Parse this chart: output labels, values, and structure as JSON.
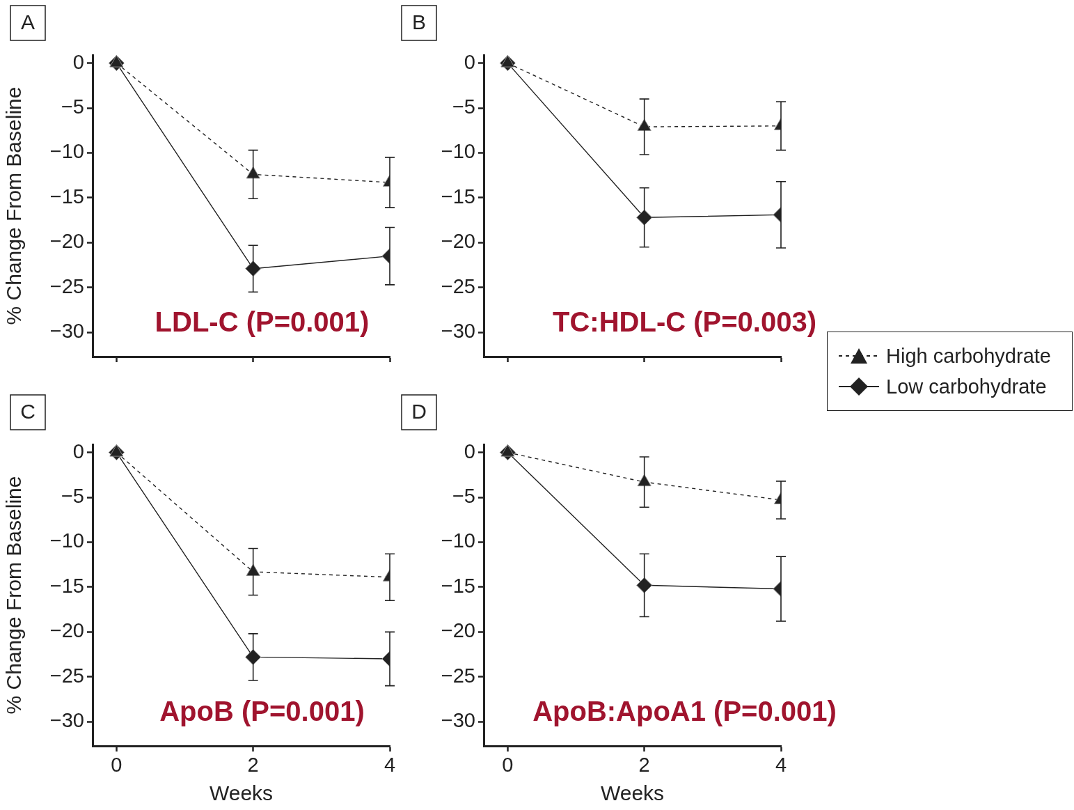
{
  "chart_data": [
    {
      "type": "line",
      "title": "A",
      "ylabel": "% Change From Baseline",
      "annotations": [
        "LDL-C (P=0.001)"
      ],
      "legend": "right",
      "x": [
        0,
        2,
        4
      ],
      "xlim": [
        -0.35,
        4
      ],
      "xticks": [
        0,
        2,
        4
      ],
      "ylim": [
        -32.7,
        0.9
      ],
      "yticks": [
        0,
        -5,
        -10,
        -15,
        -20,
        -25,
        -30
      ],
      "tick_labels": "y",
      "series": [
        {
          "name": "High carbohydrate",
          "color": "#222222",
          "marker": "triangle",
          "line_style": "dashed",
          "values": [
            0,
            -12.4,
            -13.3
          ],
          "errors": [
            null,
            2.7,
            2.8
          ]
        },
        {
          "name": "Low carbohydrate",
          "color": "#222222",
          "marker": "diamond",
          "line_style": "solid",
          "values": [
            0,
            -22.9,
            -21.5
          ],
          "errors": [
            null,
            2.6,
            3.2
          ]
        }
      ]
    },
    {
      "type": "line",
      "title": "B",
      "annotations": [
        "TC:HDL-C (P=0.003)"
      ],
      "x": [
        0,
        2,
        4
      ],
      "xlim": [
        -0.35,
        4
      ],
      "xticks": [
        0,
        2,
        4
      ],
      "ylim": [
        -32.7,
        0.9
      ],
      "yticks": [
        0,
        -5,
        -10,
        -15,
        -20,
        -25,
        -30
      ],
      "tick_labels": "y",
      "series": [
        {
          "color": "#222222",
          "marker": "triangle",
          "line_style": "dashed",
          "values": [
            0,
            -7.1,
            -7.0
          ],
          "errors": [
            null,
            3.1,
            2.7
          ]
        },
        {
          "color": "#222222",
          "marker": "diamond",
          "line_style": "solid",
          "values": [
            0,
            -17.2,
            -16.9
          ],
          "errors": [
            null,
            3.3,
            3.7
          ]
        }
      ]
    },
    {
      "type": "line",
      "title": "C",
      "xlabel": "Weeks",
      "ylabel": "% Change From Baseline",
      "annotations": [
        "ApoB (P=0.001)"
      ],
      "x": [
        0,
        2,
        4
      ],
      "xlim": [
        -0.35,
        4
      ],
      "xticks": [
        0,
        2,
        4
      ],
      "ylim": [
        -32.7,
        0.9
      ],
      "yticks": [
        0,
        -5,
        -10,
        -15,
        -20,
        -25,
        -30
      ],
      "series": [
        {
          "color": "#222222",
          "marker": "triangle",
          "line_style": "dashed",
          "values": [
            0,
            -13.3,
            -13.9
          ],
          "errors": [
            null,
            2.6,
            2.6
          ]
        },
        {
          "color": "#222222",
          "marker": "diamond",
          "line_style": "solid",
          "values": [
            0,
            -22.8,
            -23.0
          ],
          "errors": [
            null,
            2.6,
            3.0
          ]
        }
      ]
    },
    {
      "type": "line",
      "title": "D",
      "xlabel": "Weeks",
      "annotations": [
        "ApoB:ApoA1 (P=0.001)"
      ],
      "x": [
        0,
        2,
        4
      ],
      "xlim": [
        -0.35,
        4
      ],
      "xticks": [
        0,
        2,
        4
      ],
      "ylim": [
        -32.7,
        0.9
      ],
      "yticks": [
        0,
        -5,
        -10,
        -15,
        -20,
        -25,
        -30
      ],
      "series": [
        {
          "color": "#222222",
          "marker": "triangle",
          "line_style": "dashed",
          "values": [
            0,
            -3.3,
            -5.3
          ],
          "errors": [
            null,
            2.8,
            2.1
          ]
        },
        {
          "color": "#222222",
          "marker": "diamond",
          "line_style": "solid",
          "values": [
            0,
            -14.8,
            -15.2
          ],
          "errors": [
            null,
            3.5,
            3.6
          ]
        }
      ]
    }
  ]
}
